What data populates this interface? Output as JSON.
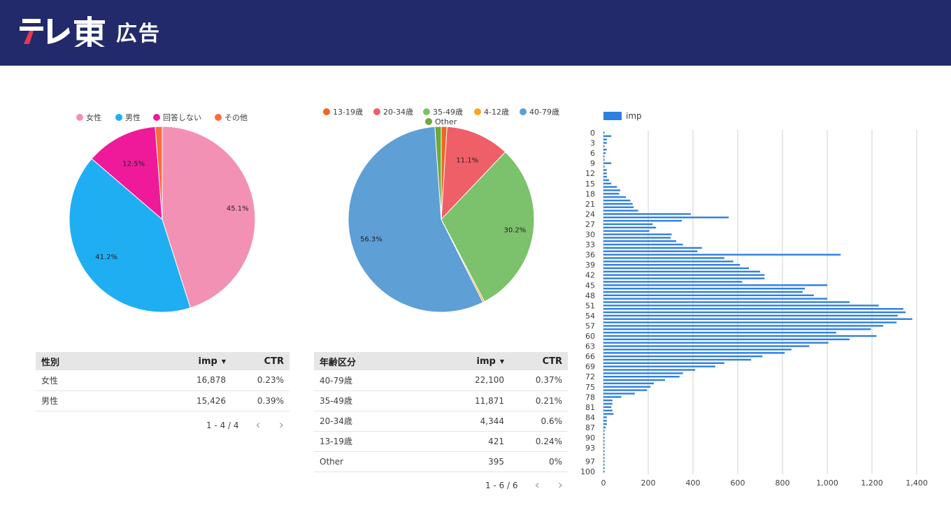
{
  "header": {
    "brand": "テレ東",
    "subtitle": "広告",
    "bg_color": "#222a6b"
  },
  "gender_pie": {
    "chart_data": {
      "type": "pie",
      "legend_position": "top",
      "labels": [
        "女性",
        "男性",
        "回答しない",
        "その他"
      ],
      "values": [
        45.1,
        41.2,
        12.5,
        1.2
      ],
      "data_labels": [
        "45.1%",
        "41.2%",
        "12.5%",
        ""
      ],
      "colors": [
        "#f391b5",
        "#20aef2",
        "#ef1a9a",
        "#ff6a3d"
      ]
    }
  },
  "age_pie": {
    "chart_data": {
      "type": "pie",
      "legend_position": "top",
      "labels": [
        "13-19歳",
        "20-34歳",
        "35-49歳",
        "4-12歳",
        "40-79歳",
        "Other"
      ],
      "values": [
        1.0,
        11.1,
        30.2,
        0.3,
        56.3,
        1.1
      ],
      "data_labels": [
        "",
        "11.1%",
        "30.2%",
        "",
        "56.3%",
        ""
      ],
      "colors": [
        "#f0671e",
        "#ef5f67",
        "#7cc16c",
        "#f5a623",
        "#5e9fd6",
        "#6ea83c"
      ]
    }
  },
  "age_bar": {
    "legend": "imp",
    "color": "#2d7fe0",
    "chart_data": {
      "type": "bar",
      "orientation": "horizontal",
      "series": [
        {
          "name": "imp"
        }
      ],
      "categories": [
        0,
        1,
        2,
        3,
        4,
        5,
        6,
        7,
        8,
        9,
        10,
        11,
        12,
        13,
        14,
        15,
        16,
        17,
        18,
        19,
        20,
        21,
        22,
        23,
        24,
        25,
        26,
        27,
        28,
        29,
        30,
        31,
        32,
        33,
        34,
        35,
        36,
        37,
        38,
        39,
        40,
        41,
        42,
        43,
        44,
        45,
        46,
        47,
        48,
        49,
        50,
        51,
        52,
        53,
        54,
        55,
        56,
        57,
        58,
        59,
        60,
        61,
        62,
        63,
        64,
        65,
        66,
        67,
        68,
        69,
        70,
        71,
        72,
        73,
        74,
        75,
        76,
        77,
        78,
        79,
        80,
        81,
        82,
        83,
        84,
        85,
        86,
        87,
        88,
        89,
        90,
        91,
        92,
        93,
        94,
        95,
        96,
        97,
        98,
        99,
        100
      ],
      "values": [
        5,
        35,
        15,
        15,
        5,
        15,
        10,
        5,
        5,
        35,
        5,
        15,
        15,
        15,
        25,
        35,
        60,
        75,
        70,
        100,
        120,
        130,
        135,
        155,
        390,
        560,
        350,
        220,
        235,
        205,
        305,
        300,
        325,
        355,
        440,
        420,
        1060,
        540,
        580,
        610,
        650,
        700,
        720,
        720,
        620,
        1000,
        900,
        890,
        940,
        1000,
        1100,
        1230,
        1340,
        1350,
        1315,
        1380,
        1310,
        1250,
        1195,
        1040,
        1220,
        1100,
        1005,
        920,
        840,
        810,
        710,
        660,
        540,
        500,
        410,
        355,
        340,
        275,
        225,
        210,
        195,
        140,
        80,
        40,
        40,
        35,
        40,
        45,
        15,
        15,
        15,
        10,
        5,
        5,
        5,
        5,
        5,
        5,
        5,
        5,
        5,
        5,
        5,
        5,
        5
      ],
      "tick_labels": [
        "0",
        "3",
        "6",
        "9",
        "12",
        "15",
        "18",
        "21",
        "24",
        "27",
        "30",
        "33",
        "36",
        "39",
        "42",
        "45",
        "48",
        "51",
        "54",
        "57",
        "60",
        "63",
        "66",
        "69",
        "72",
        "75",
        "78",
        "81",
        "84",
        "87",
        "90",
        "93",
        "97",
        "100"
      ],
      "x_ticks": [
        "0",
        "200",
        "400",
        "600",
        "800",
        "1,000",
        "1,200",
        "1,400"
      ],
      "xlim": [
        0,
        1400
      ],
      "grid": true,
      "legend_position": "top-left"
    }
  },
  "gender_table": {
    "headers": [
      "性別",
      "imp",
      "CTR"
    ],
    "rows": [
      {
        "label": "女性",
        "imp": "16,878",
        "ctr": "0.23%"
      },
      {
        "label": "男性",
        "imp": "15,426",
        "ctr": "0.39%"
      }
    ],
    "pager": "1 - 4 / 4"
  },
  "age_table": {
    "headers": [
      "年齢区分",
      "imp",
      "CTR"
    ],
    "rows": [
      {
        "label": "40-79歳",
        "imp": "22,100",
        "ctr": "0.37%"
      },
      {
        "label": "35-49歳",
        "imp": "11,871",
        "ctr": "0.21%"
      },
      {
        "label": "20-34歳",
        "imp": "4,344",
        "ctr": "0.6%"
      },
      {
        "label": "13-19歳",
        "imp": "421",
        "ctr": "0.24%"
      },
      {
        "label": "Other",
        "imp": "395",
        "ctr": "0%"
      }
    ],
    "pager": "1 - 6 / 6"
  }
}
